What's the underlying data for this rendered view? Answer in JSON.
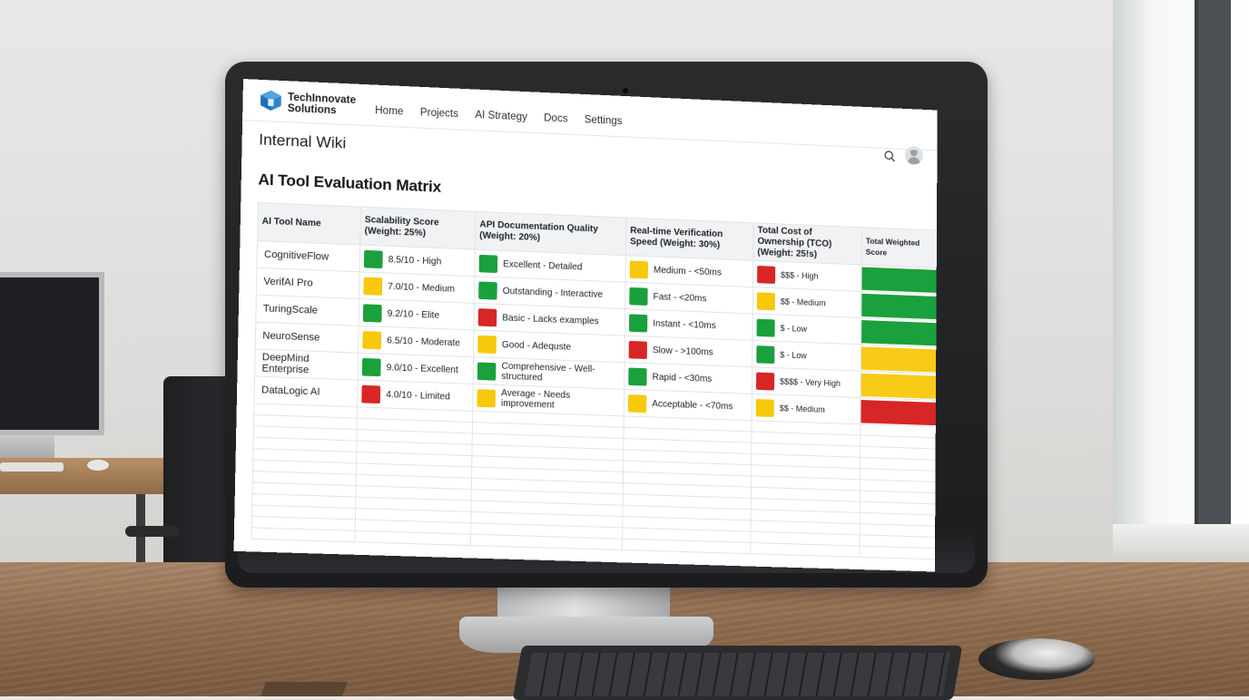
{
  "brand": {
    "line1": "TechInnovate",
    "line2": "Solutions"
  },
  "nav": [
    "Home",
    "Projects",
    "AI Strategy",
    "Docs",
    "Settings"
  ],
  "wiki_title": "Internal Wiki",
  "page_title": "AI Tool Evaluation Matrix",
  "colors": {
    "green": "#1aa03c",
    "yellow": "#f7c80c",
    "red": "#d72626"
  },
  "icons": {
    "logo": "cube-logo-icon",
    "search": "search-icon",
    "user": "user-avatar-icon"
  },
  "table": {
    "headers": [
      "AI Tool Name",
      "Scalability Score (Weight: 25%)",
      "API Documentation Quality (Weight: 20%)",
      "Real-time Verification Speed (Weight: 30%)",
      "Total Cost of Ownership (TCO) (Weight: 25!s)",
      "Total Weighted Score"
    ],
    "rows": [
      {
        "name": "CognitiveFlow",
        "scalability": {
          "text": "8.5/10 - High",
          "status": "green"
        },
        "api_docs": {
          "text": "Excellent - Detailed",
          "status": "green"
        },
        "speed": {
          "text": "Medium - <50ms",
          "status": "yellow"
        },
        "tco": {
          "text": "$$$ - High",
          "status": "red"
        },
        "total": "green"
      },
      {
        "name": "VerifAI Pro",
        "scalability": {
          "text": "7.0/10 - Medium",
          "status": "yellow"
        },
        "api_docs": {
          "text": "Outstanding - Interactive",
          "status": "green"
        },
        "speed": {
          "text": "Fast - <20ms",
          "status": "green"
        },
        "tco": {
          "text": "$$ - Medium",
          "status": "yellow"
        },
        "total": "green"
      },
      {
        "name": "TuringScale",
        "scalability": {
          "text": "9.2/10 - Elite",
          "status": "green"
        },
        "api_docs": {
          "text": "Basic - Lacks examples",
          "status": "red"
        },
        "speed": {
          "text": "Instant - <10ms",
          "status": "green"
        },
        "tco": {
          "text": "$ - Low",
          "status": "green"
        },
        "total": "green"
      },
      {
        "name": "NeuroSense",
        "scalability": {
          "text": "6.5/10 - Moderate",
          "status": "yellow"
        },
        "api_docs": {
          "text": "Good - Adequste",
          "status": "yellow"
        },
        "speed": {
          "text": "Slow - >100ms",
          "status": "red"
        },
        "tco": {
          "text": "$ - Low",
          "status": "green"
        },
        "total": "yellow"
      },
      {
        "name": "DeepMind Enterprise",
        "scalability": {
          "text": "9.0/10 - Excellent",
          "status": "green"
        },
        "api_docs": {
          "text": "Comprehensive - Well-structured",
          "status": "green"
        },
        "speed": {
          "text": "Rapid - <30ms",
          "status": "green"
        },
        "tco": {
          "text": "$$$$ - Very High",
          "status": "red"
        },
        "total": "yellow"
      },
      {
        "name": "DataLogic AI",
        "scalability": {
          "text": "4.0/10 - Limited",
          "status": "red"
        },
        "api_docs": {
          "text": "Average - Needs improvement",
          "status": "yellow"
        },
        "speed": {
          "text": "Acceptable - <70ms",
          "status": "yellow"
        },
        "tco": {
          "text": "$$ - Medium",
          "status": "yellow"
        },
        "total": "red"
      }
    ]
  }
}
